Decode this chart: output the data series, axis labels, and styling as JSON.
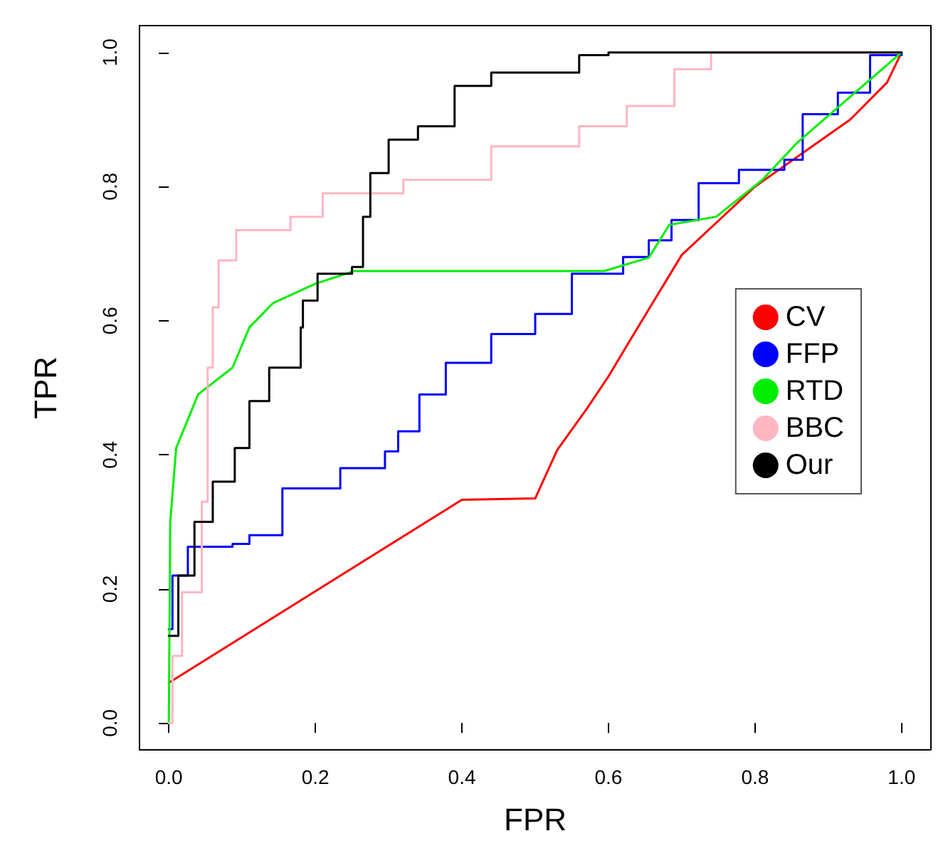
{
  "chart_data": {
    "type": "line",
    "xlabel": "FPR",
    "ylabel": "TPR",
    "xlim": [
      -0.04,
      1.04
    ],
    "ylim": [
      -0.04,
      1.04
    ],
    "xticks": [
      {
        "value": 0,
        "label": "0.0"
      },
      {
        "value": 0.2,
        "label": "0.2"
      },
      {
        "value": 0.4,
        "label": "0.4"
      },
      {
        "value": 0.6,
        "label": "0.6"
      },
      {
        "value": 0.8,
        "label": "0.8"
      },
      {
        "value": 1,
        "label": "1.0"
      }
    ],
    "yticks": [
      {
        "value": 0,
        "label": "0.0"
      },
      {
        "value": 0.2,
        "label": "0.2"
      },
      {
        "value": 0.4,
        "label": "0.4"
      },
      {
        "value": 0.6,
        "label": "0.6"
      },
      {
        "value": 0.8,
        "label": "0.8"
      },
      {
        "value": 1,
        "label": "1.0"
      }
    ],
    "grid": false,
    "legend": "right",
    "marker": "none",
    "line_style": "solid",
    "series": [
      {
        "name": "CV",
        "color": "#ff0000",
        "x": [
          0,
          0.4,
          0.5,
          0.53,
          0.57,
          0.6,
          0.64,
          0.7,
          0.8,
          0.93,
          0.98,
          1
        ],
        "values": [
          0.06,
          0.333,
          0.335,
          0.407,
          0.468,
          0.517,
          0.59,
          0.698,
          0.8,
          0.9,
          0.955,
          1
        ]
      },
      {
        "name": "FFP",
        "color": "#0000ff",
        "type": "step",
        "x": [
          0,
          0.005,
          0.026,
          0.087,
          0.11,
          0.155,
          0.234,
          0.295,
          0.313,
          0.342,
          0.378,
          0.44,
          0.5,
          0.55,
          0.62,
          0.655,
          0.686,
          0.723,
          0.778,
          0.84,
          0.865,
          0.913,
          0.957,
          1
        ],
        "values": [
          0.14,
          0.22,
          0.263,
          0.267,
          0.28,
          0.35,
          0.38,
          0.405,
          0.435,
          0.49,
          0.537,
          0.58,
          0.61,
          0.67,
          0.695,
          0.72,
          0.75,
          0.805,
          0.825,
          0.84,
          0.908,
          0.94,
          0.996,
          1
        ]
      },
      {
        "name": "RTD",
        "color": "#00ee00",
        "x": [
          0,
          0.002,
          0.01,
          0.04,
          0.087,
          0.11,
          0.142,
          0.2,
          0.253,
          0.594,
          0.655,
          0.683,
          0.747,
          0.81,
          0.858,
          0.93,
          1
        ],
        "values": [
          0,
          0.3,
          0.41,
          0.49,
          0.53,
          0.59,
          0.626,
          0.655,
          0.674,
          0.674,
          0.694,
          0.743,
          0.755,
          0.81,
          0.866,
          0.934,
          1
        ]
      },
      {
        "name": "BBC",
        "color": "#ffb6c1",
        "type": "step",
        "x": [
          0,
          0.005,
          0.018,
          0.045,
          0.053,
          0.06,
          0.068,
          0.092,
          0.166,
          0.21,
          0.32,
          0.44,
          0.56,
          0.625,
          0.69,
          0.74,
          1
        ],
        "values": [
          0,
          0.1,
          0.195,
          0.33,
          0.53,
          0.62,
          0.69,
          0.735,
          0.755,
          0.79,
          0.81,
          0.86,
          0.89,
          0.92,
          0.975,
          1,
          1
        ]
      },
      {
        "name": "Our",
        "color": "#000000",
        "type": "step",
        "x": [
          0,
          0.013,
          0.035,
          0.06,
          0.09,
          0.11,
          0.137,
          0.18,
          0.183,
          0.203,
          0.25,
          0.265,
          0.275,
          0.3,
          0.34,
          0.39,
          0.44,
          0.56,
          0.6,
          1
        ],
        "values": [
          0.13,
          0.22,
          0.3,
          0.36,
          0.41,
          0.48,
          0.53,
          0.59,
          0.63,
          0.67,
          0.68,
          0.755,
          0.82,
          0.87,
          0.89,
          0.95,
          0.97,
          0.996,
          1,
          1
        ]
      }
    ]
  }
}
